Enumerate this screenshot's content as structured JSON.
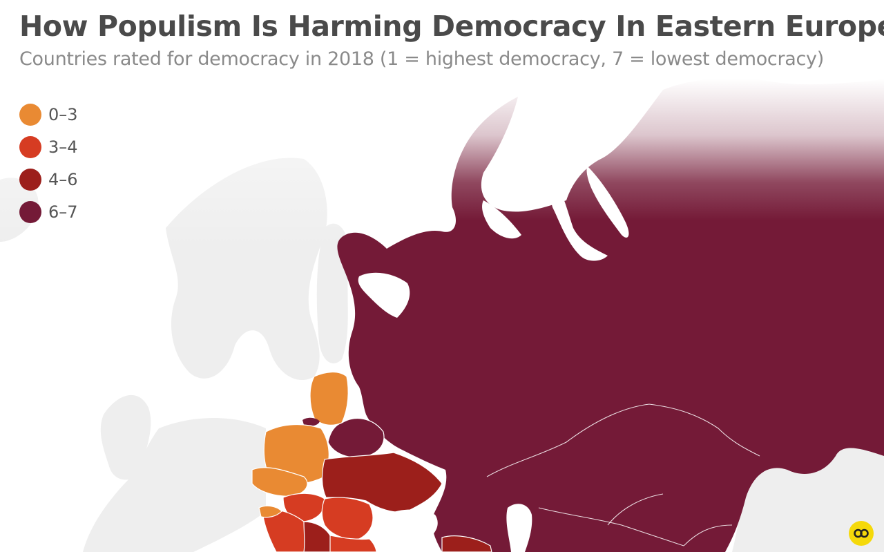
{
  "header": {
    "title": "How Populism Is Harming Democracy In Eastern Europe",
    "subtitle": "Countries rated for democracy in 2018 (1 = highest democracy, 7 = lowest democracy)"
  },
  "legend": {
    "items": [
      {
        "label": "0–3",
        "color": "#e98a33"
      },
      {
        "label": "3–4",
        "color": "#d63c22"
      },
      {
        "label": "4–6",
        "color": "#9c1f1b"
      },
      {
        "label": "6–7",
        "color": "#741a37"
      }
    ]
  },
  "colors": {
    "land_background": "#eeeeee",
    "sea": "#ffffff"
  },
  "brand": {
    "icon": "statista-logo-icon",
    "color": "#f5d90a"
  }
}
